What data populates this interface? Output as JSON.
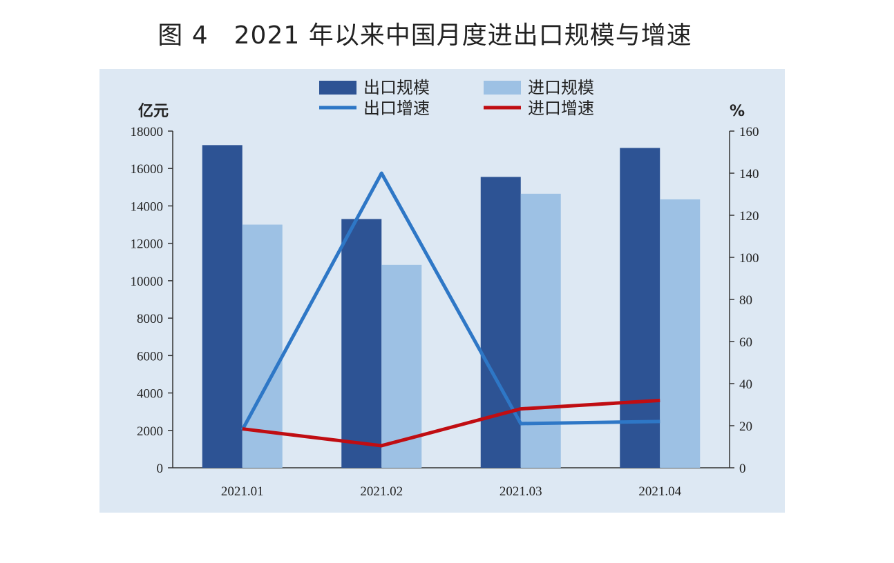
{
  "title": "图 4　2021 年以来中国月度进出口规模与增速",
  "colors": {
    "export_bar": "#2d5394",
    "import_bar": "#9dc1e4",
    "export_line": "#2e77c6",
    "import_line": "#c00d12",
    "panel_bg": "#dde8f3"
  },
  "chart_data": {
    "type": "bar",
    "title": "图 4　2021 年以来中国月度进出口规模与增速",
    "categories": [
      "2021.01",
      "2021.02",
      "2021.03",
      "2021.04"
    ],
    "y_left": {
      "label": "亿元",
      "range": [
        0,
        18000
      ],
      "ticks": [
        "0",
        "2000",
        "4000",
        "6000",
        "8000",
        "10000",
        "12000",
        "14000",
        "16000",
        "18000"
      ]
    },
    "y_right": {
      "label": "%",
      "range": [
        0,
        160
      ],
      "ticks": [
        "0",
        "20",
        "40",
        "60",
        "80",
        "100",
        "120",
        "140",
        "160"
      ]
    },
    "series": [
      {
        "name": "出口规模",
        "type": "bar",
        "axis": "left",
        "values": [
          17250,
          13300,
          15550,
          17100
        ]
      },
      {
        "name": "进口规模",
        "type": "bar",
        "axis": "left",
        "values": [
          13000,
          10850,
          14650,
          14350
        ]
      },
      {
        "name": "出口增速",
        "type": "line",
        "axis": "right",
        "values": [
          18,
          140,
          21,
          22
        ]
      },
      {
        "name": "进口增速",
        "type": "line",
        "axis": "right",
        "values": [
          18.5,
          10.5,
          28,
          32
        ]
      }
    ],
    "legend_position": "top",
    "grid": false
  }
}
